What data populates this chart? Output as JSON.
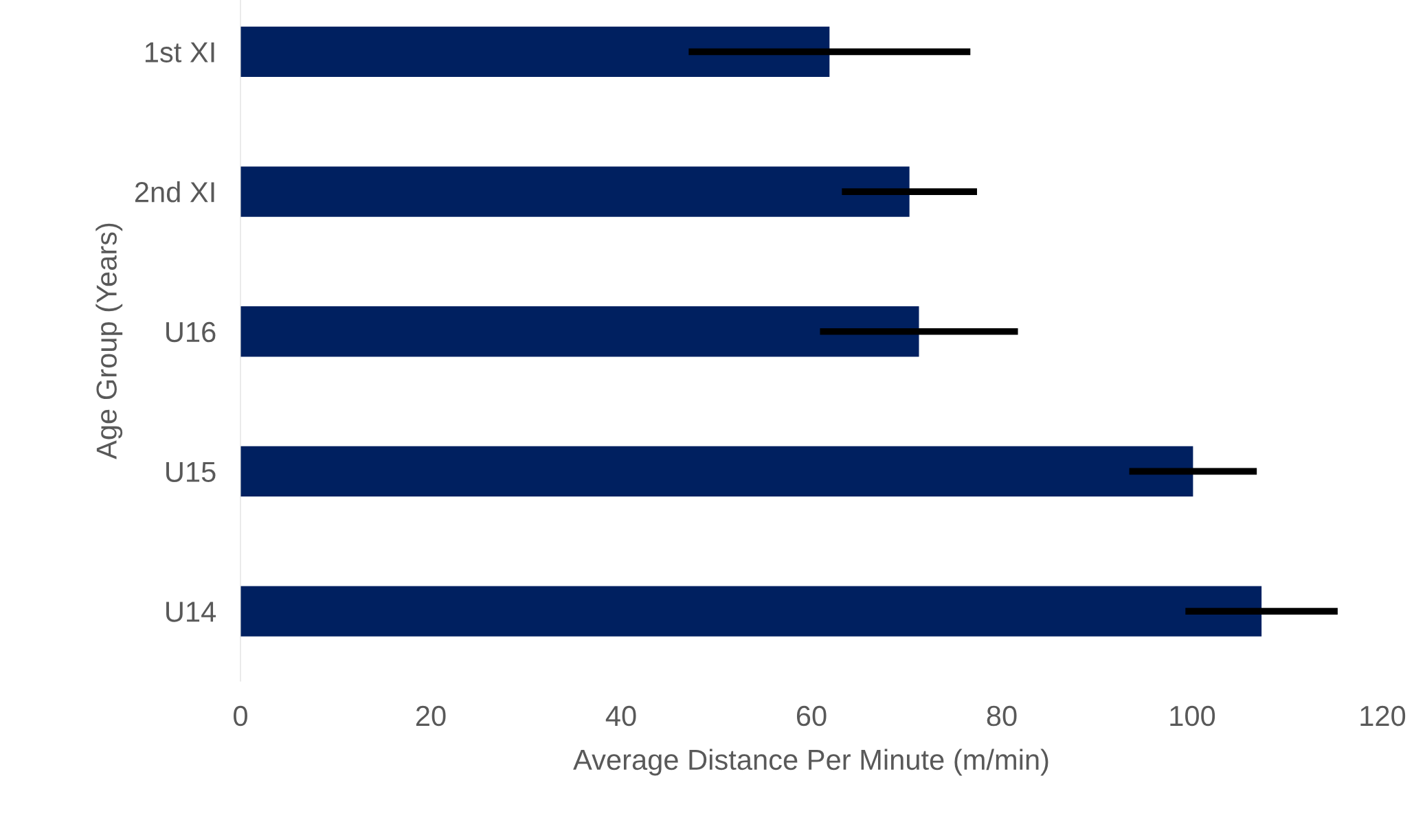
{
  "chart_data": {
    "type": "bar",
    "orientation": "horizontal",
    "xlabel": "Average Distance Per Minute (m/min)",
    "ylabel": "Age Group (Years)",
    "categories": [
      "1st XI",
      "2nd XI",
      "U16",
      "U15",
      "U14"
    ],
    "values": [
      61.9,
      70.3,
      71.3,
      100.1,
      107.3
    ],
    "errors": [
      14.8,
      7.1,
      10.4,
      6.7,
      8.0
    ],
    "color": "#002060",
    "xlim": [
      0,
      120
    ],
    "xticks": [
      0,
      20,
      40,
      60,
      80,
      100,
      120
    ],
    "grid": false,
    "legend": false
  }
}
